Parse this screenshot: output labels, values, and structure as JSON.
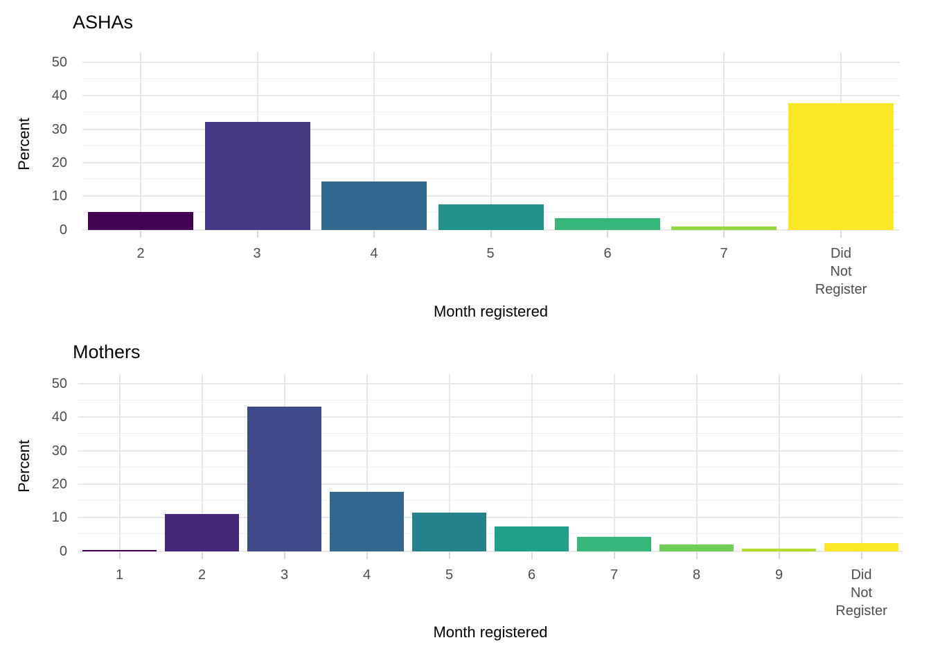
{
  "page": {
    "background": "#ffffff"
  },
  "style": {
    "grid_major_color": "#e7e7e7",
    "grid_minor_color": "#f0f0f0",
    "axis_tick_color": "#d9d9d9",
    "tick_label_color": "#4d4d4d",
    "text_color": "#000000",
    "panel_background": "#ffffff"
  },
  "chart_data": [
    {
      "type": "bar",
      "title": "ASHAs",
      "xlabel": "Month registered",
      "ylabel": "Percent",
      "categories": [
        "2",
        "3",
        "4",
        "5",
        "6",
        "7",
        "Did\nNot\nRegister"
      ],
      "values": [
        5.2,
        32.3,
        14.4,
        7.5,
        3.4,
        0.9,
        37.7
      ],
      "bar_colors": [
        "#440154",
        "#443983",
        "#31688e",
        "#21918c",
        "#35b779",
        "#90d743",
        "#fde725"
      ],
      "yticks": [
        0,
        10,
        20,
        30,
        40,
        50
      ],
      "yticks_minor": [
        5,
        15,
        25,
        35,
        45
      ],
      "ylim": [
        0,
        50
      ],
      "grid": true,
      "legend": "none"
    },
    {
      "type": "bar",
      "title": "Mothers",
      "xlabel": "Month registered",
      "ylabel": "Percent",
      "categories": [
        "1",
        "2",
        "3",
        "4",
        "5",
        "6",
        "7",
        "8",
        "9",
        "Did\nNot\nRegister"
      ],
      "values": [
        0.4,
        11.0,
        43.1,
        17.8,
        11.4,
        7.3,
        4.3,
        2.0,
        0.7,
        2.3
      ],
      "bar_colors": [
        "#440154",
        "#482878",
        "#3e4a89",
        "#31688e",
        "#26828e",
        "#1f9e89",
        "#35b779",
        "#6ece58",
        "#b5de2b",
        "#fde725"
      ],
      "yticks": [
        0,
        10,
        20,
        30,
        40,
        50
      ],
      "yticks_minor": [
        5,
        15,
        25,
        35,
        45
      ],
      "ylim": [
        0,
        50
      ],
      "grid": true,
      "legend": "none"
    }
  ]
}
